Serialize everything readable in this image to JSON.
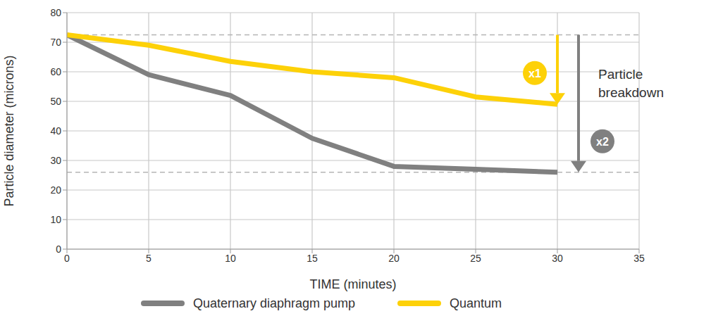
{
  "chart_data": {
    "type": "line",
    "x_label": "TIME (minutes)",
    "y_label": "Particle diameter (microns)",
    "x": [
      0,
      5,
      10,
      15,
      20,
      25,
      30
    ],
    "series": [
      {
        "name": "Quaternary diaphragm pump",
        "color": "#808080",
        "values": [
          72.5,
          59,
          52,
          37.5,
          28,
          27,
          26
        ]
      },
      {
        "name": "Quantum",
        "color": "#fdd108",
        "values": [
          72.5,
          69,
          63.5,
          60,
          58,
          51.5,
          49
        ]
      }
    ],
    "xlim": [
      0,
      35
    ],
    "xticks": [
      0,
      5,
      10,
      15,
      20,
      25,
      30,
      35
    ],
    "ylim": [
      0,
      80
    ],
    "yticks": [
      0,
      10,
      20,
      30,
      40,
      50,
      60,
      70,
      80
    ],
    "grid": true,
    "legend": "bottom",
    "reference_lines": [
      72.5,
      26
    ],
    "annotations": [
      {
        "text": "x1",
        "series": "Quantum"
      },
      {
        "text": "x2",
        "series": "Quaternary diaphragm pump"
      },
      {
        "text": "Particle breakdown"
      }
    ]
  }
}
